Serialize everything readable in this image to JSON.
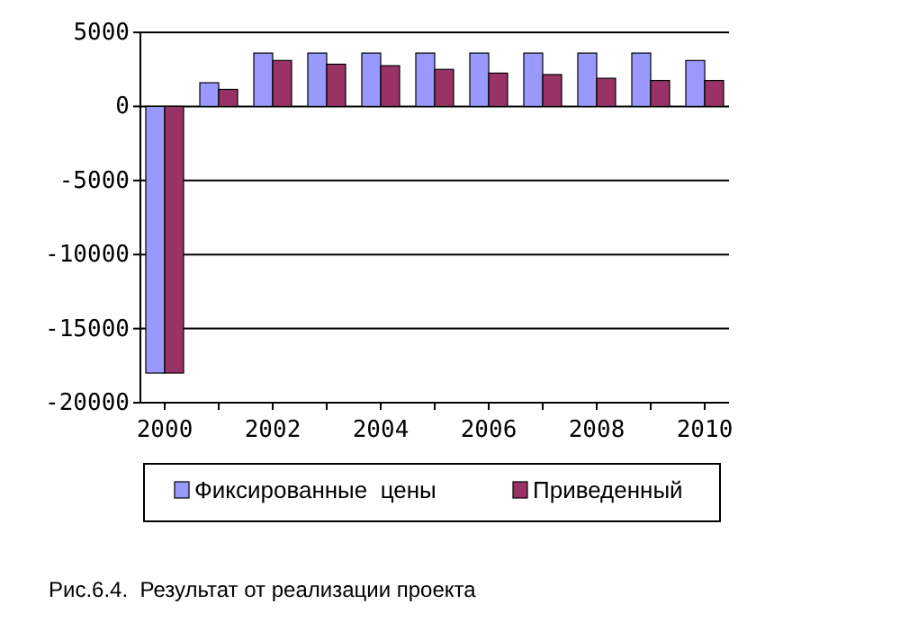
{
  "chart_data": {
    "type": "bar",
    "categories": [
      "2000",
      null,
      "2002",
      null,
      "2004",
      null,
      "2006",
      null,
      "2008",
      null,
      "2010"
    ],
    "series": [
      {
        "name": "Фиксированные  цены",
        "color": "#9999ff",
        "values": [
          -18000,
          1600,
          3600,
          3600,
          3600,
          3600,
          3600,
          3600,
          3600,
          3600,
          3100
        ]
      },
      {
        "name": "Приведенный",
        "color": "#993366",
        "values": [
          -18000,
          1150,
          3100,
          2850,
          2750,
          2500,
          2250,
          2150,
          1900,
          1750,
          1750
        ]
      }
    ],
    "ylim": [
      -20000,
      5000
    ],
    "yticks": [
      -20000,
      -15000,
      -10000,
      -5000,
      0,
      5000
    ],
    "grid": "y",
    "legend": "bottom",
    "annotations": [
      "Рис.6.4.  Результат от реализации проекта"
    ]
  }
}
